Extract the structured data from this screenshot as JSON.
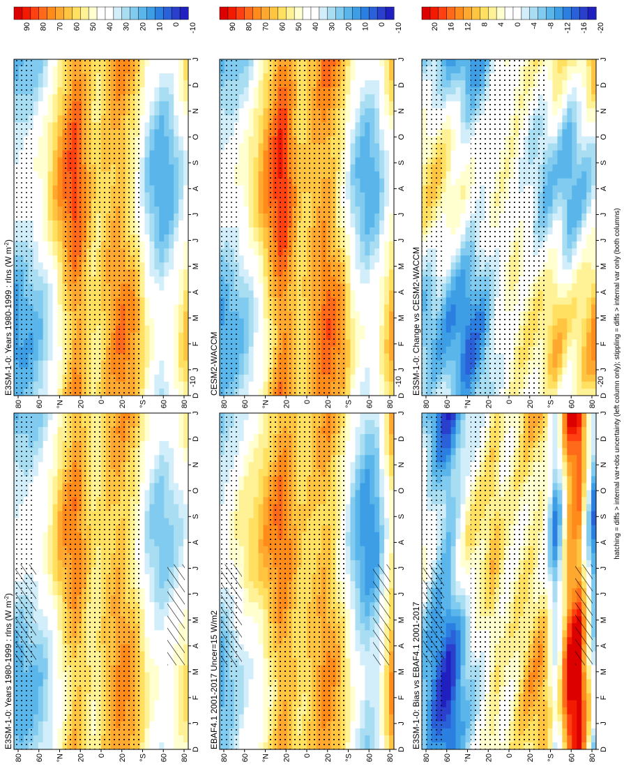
{
  "figure": {
    "footnote": "hatching = diffs > internal var+obs uncertainty (left column only); stippling = diffs > internal var only (both columns)"
  },
  "colors": {
    "abs_scale": [
      "#dd0000",
      "#f21a00",
      "#ff4010",
      "#ff6a1a",
      "#ff8c1a",
      "#ffa830",
      "#ffc440",
      "#ffe060",
      "#fff296",
      "#ffffd0",
      "#ffffff",
      "#ffffff",
      "#d2eefa",
      "#a8ddf2",
      "#80cbef",
      "#5ab6ea",
      "#3d9ee5",
      "#2a7fe0",
      "#2a60d8",
      "#2a40cc",
      "#2020c0"
    ],
    "diff_scale": [
      "#dd0000",
      "#f21a00",
      "#ff4010",
      "#ff6a1a",
      "#ff8c1a",
      "#ffa830",
      "#ffc440",
      "#ffe060",
      "#fff296",
      "#ffffd0",
      "#ffffff",
      "#ffffff",
      "#d2eefa",
      "#a8ddf2",
      "#80cbef",
      "#5ab6ea",
      "#3d9ee5",
      "#2a7fe0",
      "#2a60d8",
      "#2a40cc",
      "#2020c0"
    ]
  },
  "chart_data": [
    {
      "type": "heatmap",
      "title": "E3SM-1-0: Years 1980-1999 : rlns (W m",
      "title_sup": "-2",
      "title_end": ")",
      "x_ticks": [
        "D",
        "J",
        "F",
        "M",
        "A",
        "M",
        "J",
        "J",
        "A",
        "S",
        "O",
        "N",
        "D",
        "J"
      ],
      "y_ticks": [
        "80",
        "60",
        "°N",
        "20",
        "0",
        "20",
        "°S",
        "60",
        "80"
      ],
      "colorbar_ticks": [
        "90",
        "80",
        "70",
        "60",
        "50",
        "40",
        "30",
        "20",
        "10",
        "0",
        "-10"
      ],
      "colorbar_range": [
        -15,
        100
      ],
      "lat_profile": [
        {
          "lat": 88,
          "value": 25
        },
        {
          "lat": 70,
          "value": 28
        },
        {
          "lat": 60,
          "value": 32
        },
        {
          "lat": 50,
          "value": 42
        },
        {
          "lat": 40,
          "value": 58
        },
        {
          "lat": 25,
          "value": 72
        },
        {
          "lat": 15,
          "value": 60
        },
        {
          "lat": 5,
          "value": 52
        },
        {
          "lat": -5,
          "value": 62
        },
        {
          "lat": -20,
          "value": 70
        },
        {
          "lat": -35,
          "value": 60
        },
        {
          "lat": -48,
          "value": 38
        },
        {
          "lat": -60,
          "value": 30
        },
        {
          "lat": -70,
          "value": 34
        },
        {
          "lat": -88,
          "value": 48
        }
      ],
      "season_amp": 12,
      "hatched": true
    },
    {
      "type": "heatmap",
      "title": "E3SM-1-0: Years 1980-1999 : rlns (W m",
      "title_sup": "-2",
      "title_end": ")",
      "x_ticks": [
        "D",
        "J",
        "F",
        "M",
        "A",
        "M",
        "J",
        "J",
        "A",
        "S",
        "O",
        "N",
        "D",
        "J"
      ],
      "y_ticks": [
        "80",
        "60",
        "°N",
        "20",
        "0",
        "20",
        "°S",
        "60",
        "80"
      ],
      "colorbar_ticks": [
        "90",
        "80",
        "70",
        "60",
        "50",
        "40",
        "30",
        "20",
        "10",
        "0",
        "-10"
      ],
      "colorbar_range": [
        -15,
        100
      ],
      "lat_profile": [
        {
          "lat": 88,
          "value": 22
        },
        {
          "lat": 70,
          "value": 28
        },
        {
          "lat": 60,
          "value": 34
        },
        {
          "lat": 50,
          "value": 46
        },
        {
          "lat": 40,
          "value": 62
        },
        {
          "lat": 25,
          "value": 80
        },
        {
          "lat": 15,
          "value": 66
        },
        {
          "lat": 5,
          "value": 55
        },
        {
          "lat": -5,
          "value": 64
        },
        {
          "lat": -20,
          "value": 72
        },
        {
          "lat": -35,
          "value": 60
        },
        {
          "lat": -48,
          "value": 35
        },
        {
          "lat": -60,
          "value": 24
        },
        {
          "lat": -70,
          "value": 28
        },
        {
          "lat": -88,
          "value": 52
        }
      ],
      "season_amp": 14,
      "hatched": false
    },
    {
      "type": "heatmap",
      "title": "EBAF4.1 2001-2017 Uncer=15 W/m2",
      "title_sup": "",
      "title_end": "",
      "x_ticks": [
        "D",
        "J",
        "F",
        "M",
        "A",
        "M",
        "J",
        "J",
        "A",
        "S",
        "O",
        "N",
        "D",
        "J"
      ],
      "y_ticks": [
        "80",
        "60",
        "°N",
        "20",
        "0",
        "20",
        "°S",
        "60",
        "80"
      ],
      "colorbar_ticks": [
        "90",
        "80",
        "70",
        "60",
        "50",
        "40",
        "30",
        "20",
        "10",
        "0",
        "-10"
      ],
      "colorbar_range": [
        -15,
        100
      ],
      "lat_profile": [
        {
          "lat": 88,
          "value": 25
        },
        {
          "lat": 70,
          "value": 38
        },
        {
          "lat": 60,
          "value": 45
        },
        {
          "lat": 50,
          "value": 50
        },
        {
          "lat": 40,
          "value": 60
        },
        {
          "lat": 25,
          "value": 74
        },
        {
          "lat": 15,
          "value": 66
        },
        {
          "lat": 5,
          "value": 58
        },
        {
          "lat": -5,
          "value": 62
        },
        {
          "lat": -20,
          "value": 70
        },
        {
          "lat": -35,
          "value": 56
        },
        {
          "lat": -48,
          "value": 30
        },
        {
          "lat": -60,
          "value": 18
        },
        {
          "lat": -70,
          "value": 22
        },
        {
          "lat": -88,
          "value": 66
        }
      ],
      "season_amp": 12,
      "hatched": true
    },
    {
      "type": "heatmap",
      "title": "CESM2-WACCM",
      "title_sup": "",
      "title_end": "",
      "x_ticks": [
        "D",
        "J",
        "F",
        "M",
        "A",
        "M",
        "J",
        "J",
        "A",
        "S",
        "O",
        "N",
        "D",
        "J"
      ],
      "y_ticks": [
        "80",
        "60",
        "°N",
        "20",
        "0",
        "20",
        "°S",
        "60",
        "80"
      ],
      "colorbar_ticks": [
        "90",
        "80",
        "70",
        "60",
        "50",
        "40",
        "30",
        "20",
        "10",
        "0",
        "-10"
      ],
      "colorbar_range": [
        -15,
        100
      ],
      "lat_profile": [
        {
          "lat": 88,
          "value": 24
        },
        {
          "lat": 70,
          "value": 30
        },
        {
          "lat": 60,
          "value": 36
        },
        {
          "lat": 50,
          "value": 48
        },
        {
          "lat": 40,
          "value": 64
        },
        {
          "lat": 25,
          "value": 84
        },
        {
          "lat": 15,
          "value": 70
        },
        {
          "lat": 5,
          "value": 58
        },
        {
          "lat": -5,
          "value": 66
        },
        {
          "lat": -20,
          "value": 76
        },
        {
          "lat": -35,
          "value": 62
        },
        {
          "lat": -48,
          "value": 36
        },
        {
          "lat": -60,
          "value": 26
        },
        {
          "lat": -70,
          "value": 30
        },
        {
          "lat": -88,
          "value": 58
        }
      ],
      "season_amp": 14,
      "hatched": false
    },
    {
      "type": "heatmap",
      "title": "E3SM-1-0: Bias vs EBAF4.1 2001-2017",
      "title_sup": "",
      "title_end": "",
      "x_ticks": [
        "D",
        "J",
        "F",
        "M",
        "A",
        "M",
        "J",
        "J",
        "A",
        "S",
        "O",
        "N",
        "D",
        "J"
      ],
      "y_ticks": [
        "80",
        "60",
        "°N",
        "20",
        "0",
        "20",
        "°S",
        "60",
        "80"
      ],
      "colorbar_ticks": [
        "20",
        "16",
        "12",
        "8",
        "4",
        "0",
        "-4",
        "-8",
        "-12",
        "-16",
        "-20"
      ],
      "colorbar_range": [
        -22,
        22
      ],
      "lat_profile": [
        {
          "lat": 88,
          "value": -4
        },
        {
          "lat": 70,
          "value": -12
        },
        {
          "lat": 60,
          "value": -14
        },
        {
          "lat": 50,
          "value": -8
        },
        {
          "lat": 40,
          "value": -2
        },
        {
          "lat": 25,
          "value": 2
        },
        {
          "lat": 15,
          "value": 6
        },
        {
          "lat": 5,
          "value": 2
        },
        {
          "lat": -5,
          "value": 3
        },
        {
          "lat": -20,
          "value": 6
        },
        {
          "lat": -35,
          "value": 6
        },
        {
          "lat": -48,
          "value": -8
        },
        {
          "lat": -60,
          "value": 14
        },
        {
          "lat": -70,
          "value": 18
        },
        {
          "lat": -88,
          "value": -12
        }
      ],
      "season_amp": 6,
      "hatched": true
    },
    {
      "type": "heatmap",
      "title": "E3SM-1-0: Change vs CESM2-WACCM",
      "title_sup": "",
      "title_end": "",
      "x_ticks": [
        "D",
        "J",
        "F",
        "M",
        "A",
        "M",
        "J",
        "J",
        "A",
        "S",
        "O",
        "N",
        "D",
        "J"
      ],
      "y_ticks": [
        "80",
        "60",
        "°N",
        "20",
        "0",
        "20",
        "°S",
        "60",
        "80"
      ],
      "colorbar_ticks": [
        "20",
        "16",
        "12",
        "8",
        "4",
        "0",
        "-4",
        "-8",
        "-12",
        "-16",
        "-20"
      ],
      "colorbar_range": [
        -22,
        22
      ],
      "lat_profile": [
        {
          "lat": 88,
          "value": -2
        },
        {
          "lat": 70,
          "value": -2
        },
        {
          "lat": 60,
          "value": -4
        },
        {
          "lat": 50,
          "value": -6
        },
        {
          "lat": 40,
          "value": -8
        },
        {
          "lat": 25,
          "value": -6
        },
        {
          "lat": 15,
          "value": -2
        },
        {
          "lat": 5,
          "value": 0
        },
        {
          "lat": -5,
          "value": 2
        },
        {
          "lat": -20,
          "value": 0
        },
        {
          "lat": -35,
          "value": -2
        },
        {
          "lat": -48,
          "value": 1
        },
        {
          "lat": -60,
          "value": -4
        },
        {
          "lat": -70,
          "value": -2
        },
        {
          "lat": -88,
          "value": 4
        }
      ],
      "season_amp": 8,
      "hatched": false
    }
  ]
}
